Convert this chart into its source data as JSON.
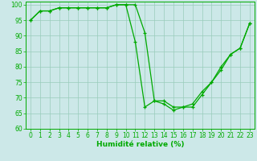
{
  "line1": {
    "x": [
      0,
      1,
      2,
      3,
      4,
      5,
      6,
      7,
      8,
      9,
      10,
      11,
      12,
      13,
      14,
      15,
      16,
      17,
      18,
      19,
      20,
      21,
      22,
      23
    ],
    "y": [
      95,
      98,
      98,
      99,
      99,
      99,
      99,
      99,
      99,
      100,
      100,
      100,
      91,
      69,
      69,
      67,
      67,
      68,
      72,
      75,
      79,
      84,
      86,
      94
    ]
  },
  "line2": {
    "x": [
      0,
      1,
      2,
      3,
      4,
      5,
      6,
      7,
      8,
      9,
      10,
      11,
      12,
      13,
      14,
      15,
      16,
      17,
      18,
      19,
      20,
      21,
      22,
      23
    ],
    "y": [
      95,
      98,
      98,
      99,
      99,
      99,
      99,
      99,
      99,
      100,
      100,
      88,
      67,
      69,
      68,
      66,
      67,
      67,
      71,
      75,
      80,
      84,
      86,
      94
    ]
  },
  "line_color": "#00aa00",
  "bg_color": "#cce8e8",
  "grid_color": "#99ccbb",
  "xlabel": "Humidité relative (%)",
  "xlim_min": -0.5,
  "xlim_max": 23.5,
  "ylim_min": 60,
  "ylim_max": 101,
  "yticks": [
    60,
    65,
    70,
    75,
    80,
    85,
    90,
    95,
    100
  ],
  "xticks": [
    0,
    1,
    2,
    3,
    4,
    5,
    6,
    7,
    8,
    9,
    10,
    11,
    12,
    13,
    14,
    15,
    16,
    17,
    18,
    19,
    20,
    21,
    22,
    23
  ],
  "xlabel_fontsize": 6.5,
  "tick_fontsize": 5.5
}
